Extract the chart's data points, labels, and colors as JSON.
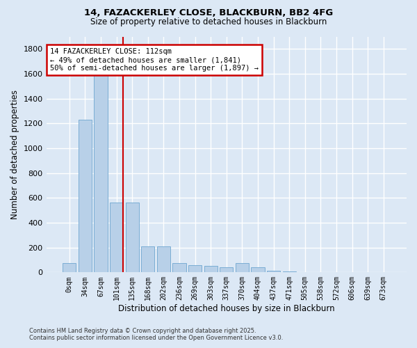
{
  "title_line1": "14, FAZACKERLEY CLOSE, BLACKBURN, BB2 4FG",
  "title_line2": "Size of property relative to detached houses in Blackburn",
  "xlabel": "Distribution of detached houses by size in Blackburn",
  "ylabel": "Number of detached properties",
  "bar_color": "#b8d0e8",
  "bar_edge_color": "#7aadd4",
  "annotation_box_color": "#cc0000",
  "vline_color": "#cc0000",
  "background_color": "#dce8f5",
  "fig_background_color": "#dce8f5",
  "grid_color": "#ffffff",
  "categories": [
    "0sqm",
    "34sqm",
    "67sqm",
    "101sqm",
    "135sqm",
    "168sqm",
    "202sqm",
    "236sqm",
    "269sqm",
    "303sqm",
    "337sqm",
    "370sqm",
    "404sqm",
    "437sqm",
    "471sqm",
    "505sqm",
    "538sqm",
    "572sqm",
    "606sqm",
    "639sqm",
    "673sqm"
  ],
  "values": [
    75,
    1230,
    1650,
    560,
    560,
    210,
    210,
    75,
    60,
    50,
    40,
    75,
    40,
    12,
    5,
    4,
    4,
    4,
    3,
    3,
    3
  ],
  "ylim": [
    0,
    1900
  ],
  "yticks": [
    0,
    200,
    400,
    600,
    800,
    1000,
    1200,
    1400,
    1600,
    1800
  ],
  "vline_x": 3.42,
  "annotation_text": "14 FAZACKERLEY CLOSE: 112sqm\n← 49% of detached houses are smaller (1,841)\n50% of semi-detached houses are larger (1,897) →",
  "footer_line1": "Contains HM Land Registry data © Crown copyright and database right 2025.",
  "footer_line2": "Contains public sector information licensed under the Open Government Licence v3.0."
}
